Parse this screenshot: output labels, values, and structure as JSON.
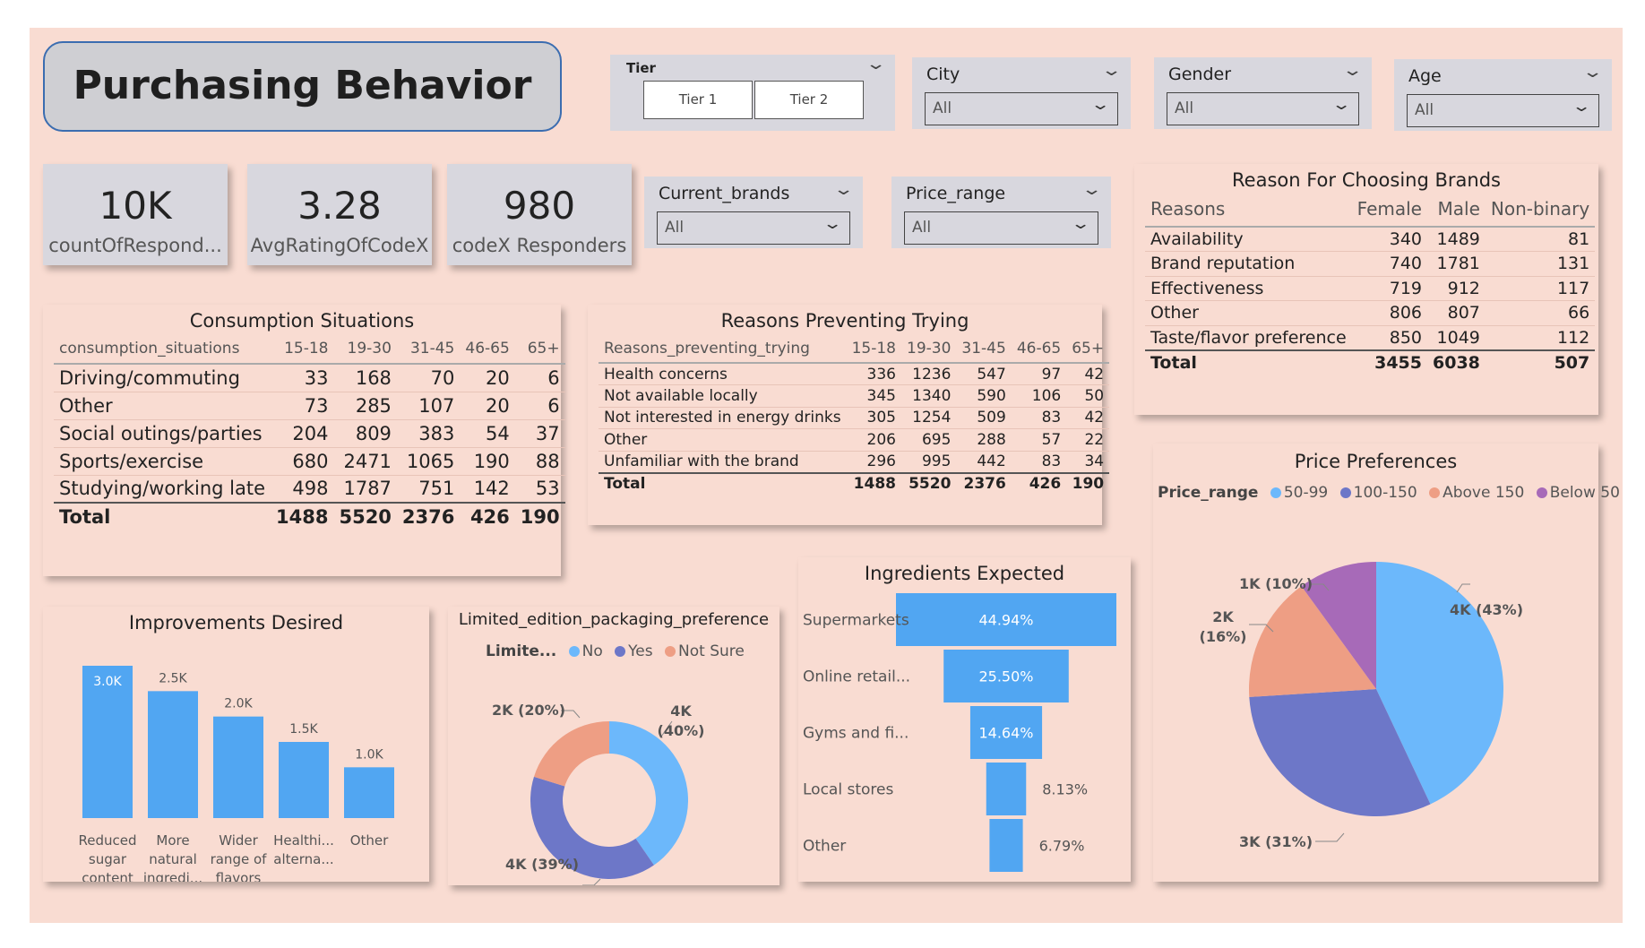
{
  "header": {
    "title": "Purchasing Behavior"
  },
  "slicers": {
    "tier": {
      "label": "Tier",
      "options": [
        "Tier 1",
        "Tier 2"
      ]
    },
    "city": {
      "label": "City",
      "value": "All"
    },
    "gender": {
      "label": "Gender",
      "value": "All"
    },
    "age": {
      "label": "Age",
      "value": "All"
    },
    "current_brands": {
      "label": "Current_brands",
      "value": "All"
    },
    "price_range": {
      "label": "Price_range",
      "value": "All"
    }
  },
  "kpis": [
    {
      "value": "10K",
      "label": "countOfRespond..."
    },
    {
      "value": "3.28",
      "label": "AvgRatingOfCodeX"
    },
    {
      "value": "980",
      "label": "codeX Responders"
    }
  ],
  "consumption": {
    "title": "Consumption Situations",
    "columns": [
      "consumption_situations",
      "15-18",
      "19-30",
      "31-45",
      "46-65",
      "65+"
    ],
    "rows": [
      [
        "Driving/commuting",
        "33",
        "168",
        "70",
        "20",
        "6"
      ],
      [
        "Other",
        "73",
        "285",
        "107",
        "20",
        "6"
      ],
      [
        "Social outings/parties",
        "204",
        "809",
        "383",
        "54",
        "37"
      ],
      [
        "Sports/exercise",
        "680",
        "2471",
        "1065",
        "190",
        "88"
      ],
      [
        "Studying/working late",
        "498",
        "1787",
        "751",
        "142",
        "53"
      ]
    ],
    "total": [
      "Total",
      "1488",
      "5520",
      "2376",
      "426",
      "190"
    ]
  },
  "preventing": {
    "title": "Reasons Preventing Trying",
    "columns": [
      "Reasons_preventing_trying",
      "15-18",
      "19-30",
      "31-45",
      "46-65",
      "65+"
    ],
    "rows": [
      [
        "Health concerns",
        "336",
        "1236",
        "547",
        "97",
        "42"
      ],
      [
        "Not available locally",
        "345",
        "1340",
        "590",
        "106",
        "50"
      ],
      [
        "Not interested in energy drinks",
        "305",
        "1254",
        "509",
        "83",
        "42"
      ],
      [
        "Other",
        "206",
        "695",
        "288",
        "57",
        "22"
      ],
      [
        "Unfamiliar with the brand",
        "296",
        "995",
        "442",
        "83",
        "34"
      ]
    ],
    "total": [
      "Total",
      "1488",
      "5520",
      "2376",
      "426",
      "190"
    ]
  },
  "brands": {
    "title": "Reason For Choosing Brands",
    "columns": [
      "Reasons",
      "Female",
      "Male",
      "Non-binary"
    ],
    "rows": [
      [
        "Availability",
        "340",
        "1489",
        "81"
      ],
      [
        "Brand reputation",
        "740",
        "1781",
        "131"
      ],
      [
        "Effectiveness",
        "719",
        "912",
        "117"
      ],
      [
        "Other",
        "806",
        "807",
        "66"
      ],
      [
        "Taste/flavor preference",
        "850",
        "1049",
        "112"
      ]
    ],
    "total": [
      "Total",
      "3455",
      "6038",
      "507"
    ]
  },
  "improvements": {
    "title": "Improvements Desired",
    "chart_data": {
      "type": "bar",
      "categories": [
        [
          "Reduced",
          "sugar",
          "content"
        ],
        [
          "More",
          "natural",
          "ingredi..."
        ],
        [
          "Wider",
          "range of",
          "flavors"
        ],
        [
          "Healthi...",
          "alterna..."
        ],
        [
          "Other"
        ]
      ],
      "values": [
        3.0,
        2.5,
        2.0,
        1.5,
        1.0
      ],
      "labels": [
        "3.0K",
        "2.5K",
        "2.0K",
        "1.5K",
        "1.0K"
      ],
      "ylim": [
        0,
        3.0
      ]
    }
  },
  "packaging": {
    "title": "Limited_edition_packaging_preference",
    "legend_title": "Limite...",
    "chart_data": {
      "type": "pie",
      "categories": [
        "No",
        "Yes",
        "Not Sure"
      ],
      "values": [
        40,
        39,
        20
      ],
      "labels": [
        "4K",
        "4K (39%)",
        "2K (20%)"
      ],
      "label_lines": [
        [
          "4K",
          "(40%)"
        ],
        [
          "4K (39%)"
        ],
        [
          "2K (20%)"
        ]
      ],
      "colors": [
        "#6cb8fb",
        "#6d77c8",
        "#ee9e84"
      ]
    }
  },
  "ingredients": {
    "title": "Ingredients Expected",
    "chart_data": {
      "type": "bar",
      "categories": [
        "Supermarkets",
        "Online retail...",
        "Gyms and fi...",
        "Local stores",
        "Other"
      ],
      "values": [
        44.94,
        25.5,
        14.64,
        8.13,
        6.79
      ],
      "labels": [
        "44.94%",
        "25.50%",
        "14.64%",
        "8.13%",
        "6.79%"
      ]
    }
  },
  "price": {
    "title": "Price Preferences",
    "legend_title": "Price_range",
    "chart_data": {
      "type": "pie",
      "categories": [
        "50-99",
        "100-150",
        "Above 150",
        "Below 50"
      ],
      "values": [
        43,
        31,
        16,
        10
      ],
      "label_lines": [
        [
          "4K (43%)"
        ],
        [
          "3K (31%)"
        ],
        [
          "2K",
          "(16%)"
        ],
        [
          "1K (10%)"
        ]
      ],
      "colors": [
        "#6cb8fb",
        "#6d77c8",
        "#ee9e84",
        "#a76ab8"
      ]
    }
  }
}
